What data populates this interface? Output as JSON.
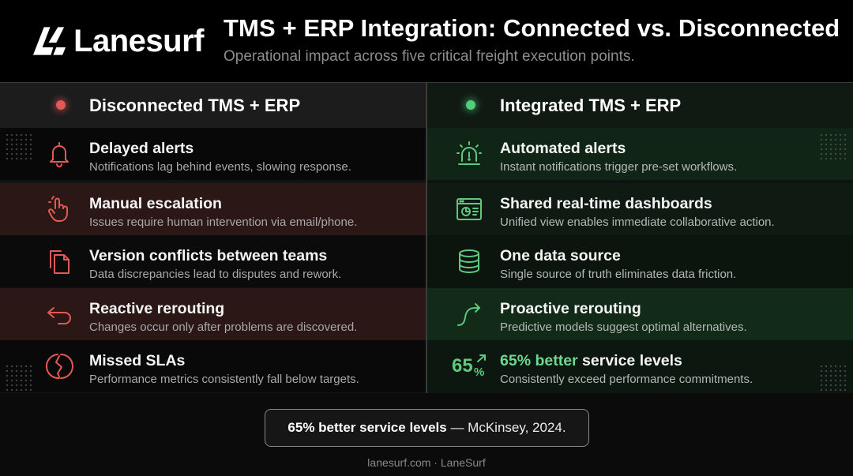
{
  "brand": {
    "name": "Lanesurf"
  },
  "header": {
    "title": "TMS + ERP Integration: Connected vs. Disconnected",
    "subtitle": "Operational impact across five critical freight execution points."
  },
  "left": {
    "title": "Disconnected TMS + ERP",
    "status_color": "#e25a55",
    "rows": [
      {
        "icon": "bell-icon",
        "title": "Delayed alerts",
        "desc": "Notifications lag behind events, slowing response."
      },
      {
        "icon": "hand-pointer-icon",
        "title": "Manual escalation",
        "desc": "Issues require human intervention via email/phone."
      },
      {
        "icon": "copy-documents-icon",
        "title": "Version conflicts between teams",
        "desc": "Data discrepancies lead to disputes and rework."
      },
      {
        "icon": "undo-arrow-icon",
        "title": "Reactive rerouting",
        "desc": "Changes occur only after problems are discovered."
      },
      {
        "icon": "broken-circle-icon",
        "title": "Missed SLAs",
        "desc": "Performance metrics consistently fall below targets."
      }
    ]
  },
  "right": {
    "title": "Integrated TMS + ERP",
    "status_color": "#4fcf7a",
    "rows": [
      {
        "icon": "siren-alert-icon",
        "title": "Automated alerts",
        "desc": "Instant notifications trigger pre-set workflows."
      },
      {
        "icon": "dashboard-icon",
        "title": "Shared real-time dashboards",
        "desc": "Unified view enables immediate collaborative action."
      },
      {
        "icon": "database-icon",
        "title": "One data source",
        "desc": "Single source of truth eliminates data friction."
      },
      {
        "icon": "curved-arrow-icon",
        "title": "Proactive rerouting",
        "desc": "Predictive models suggest optimal alternatives."
      },
      {
        "icon": "percent-up-icon",
        "icon_number": "65",
        "icon_unit": "%",
        "title_highlight": "65% better",
        "title_rest": " service levels",
        "desc": "Consistently exceed performance commitments."
      }
    ]
  },
  "callout": {
    "bold": "65% better service levels",
    "rest": " — McKinsey, 2024."
  },
  "footer": "lanesurf.com · LaneSurf",
  "colors": {
    "negative": "#e25a55",
    "positive": "#5ec97f",
    "background": "#0b0b0c"
  }
}
